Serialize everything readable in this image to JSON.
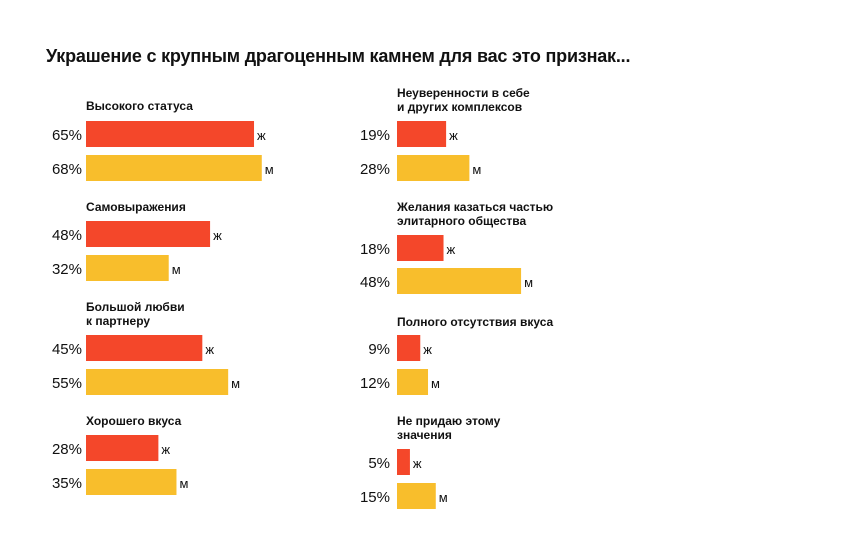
{
  "chart_data": {
    "type": "bar",
    "orientation": "horizontal",
    "title": "Украшение с крупным драгоценным камнем для вас это признак...",
    "value_unit": "%",
    "xlim": [
      0,
      100
    ],
    "series": [
      {
        "name": "ж",
        "color": "#F4472A"
      },
      {
        "name": "м",
        "color": "#F8BE2C"
      }
    ],
    "groups": [
      {
        "label": [
          "Высокого статуса"
        ],
        "values": [
          65,
          68
        ],
        "value_labels": [
          "65%",
          "68%"
        ]
      },
      {
        "label": [
          "Самовыражения"
        ],
        "values": [
          48,
          32
        ],
        "value_labels": [
          "48%",
          "32%"
        ]
      },
      {
        "label": [
          "Большой любви",
          "к партнеру"
        ],
        "values": [
          45,
          55
        ],
        "value_labels": [
          "45%",
          "55%"
        ]
      },
      {
        "label": [
          "Хорошего вкуса"
        ],
        "values": [
          28,
          35
        ],
        "value_labels": [
          "28%",
          "35%"
        ]
      },
      {
        "label": [
          "Неуверенности в себе",
          "и других комплексов"
        ],
        "values": [
          19,
          28
        ],
        "value_labels": [
          "19%",
          "28%"
        ]
      },
      {
        "label": [
          "Желания казаться частью",
          "элитарного общества"
        ],
        "values": [
          18,
          48
        ],
        "value_labels": [
          "18%",
          "48%"
        ]
      },
      {
        "label": [
          "Полного отсутствия вкуса"
        ],
        "values": [
          9,
          12
        ],
        "value_labels": [
          "9%",
          "12%"
        ]
      },
      {
        "label": [
          "Не придаю этому",
          "значения"
        ],
        "values": [
          5,
          15
        ],
        "value_labels": [
          "5%",
          "15%"
        ]
      }
    ]
  }
}
